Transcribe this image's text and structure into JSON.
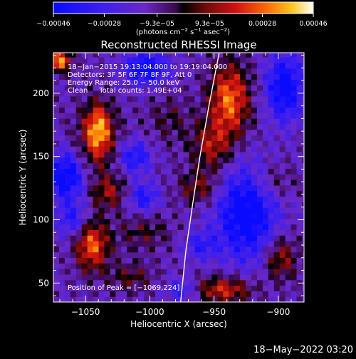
{
  "chart_data": {
    "type": "heatmap",
    "title": "Reconstructed RHESSI Image",
    "xlabel": "Heliocentric X (arcsec)",
    "ylabel": "Heliocentric Y (arcsec)",
    "xlim": [
      -1075,
      -880
    ],
    "ylim": [
      35,
      232
    ],
    "x_ticks": [
      -1050,
      -1000,
      -950,
      -900
    ],
    "x_tick_labels": [
      "−1050",
      "−1000",
      "−950",
      "−900"
    ],
    "y_ticks": [
      50,
      100,
      150,
      200
    ],
    "y_tick_labels": [
      "50",
      "100",
      "150",
      "200"
    ],
    "colorbar": {
      "range": [
        -0.00046,
        0.00046
      ],
      "ticks": [
        -0.00046,
        -0.00028,
        -9.3e-05,
        9.3e-05,
        0.00028,
        0.00046
      ],
      "tick_labels": [
        "−0.00046",
        "−0.00028",
        "−9.3e−05",
        "9.3e−05",
        "0.00028",
        "0.00046"
      ],
      "unit_prefix": "(photons cm",
      "unit_exp1": "−2",
      "unit_mid": " s",
      "unit_exp2": "−1",
      "unit_mid2": " asec",
      "unit_exp3": "−2",
      "unit_suffix": ")"
    },
    "annotations": [
      "18−Jan−2015 19:13:04.000 to 19:19:04.000",
      "Detectors: 3F 5F 6F 7F 8F 9F, Att 0",
      "Energy Range: 25.0 − 50.0 keV",
      "Clean     Total counts: 1.49E+04"
    ],
    "peak_label": "Position of Peak = [−1069,224]",
    "limb": [
      [
        -976,
        35
      ],
      [
        -972,
        75
      ],
      [
        -967,
        110
      ],
      [
        -961,
        150
      ],
      [
        -954,
        190
      ],
      [
        -946,
        232
      ]
    ],
    "sources": [
      {
        "x": -1070,
        "y": 226,
        "sx": 6,
        "sy": 6,
        "amp": 1.0
      },
      {
        "x": -1040,
        "y": 172,
        "sx": 7,
        "sy": 14,
        "amp": 0.85
      },
      {
        "x": -1032,
        "y": 122,
        "sx": 9,
        "sy": 9,
        "amp": 0.5
      },
      {
        "x": -1045,
        "y": 80,
        "sx": 9,
        "sy": 14,
        "amp": 0.85
      },
      {
        "x": -1042,
        "y": 160,
        "sx": 14,
        "sy": 20,
        "amp": 0.35
      },
      {
        "x": -938,
        "y": 195,
        "sx": 11,
        "sy": 20,
        "amp": 0.9
      },
      {
        "x": -952,
        "y": 158,
        "sx": 11,
        "sy": 14,
        "amp": 0.55
      },
      {
        "x": -962,
        "y": 125,
        "sx": 11,
        "sy": 9,
        "amp": 0.45
      },
      {
        "x": -942,
        "y": 45,
        "sx": 15,
        "sy": 7,
        "amp": 0.7
      },
      {
        "x": -898,
        "y": 70,
        "sx": 9,
        "sy": 12,
        "amp": 0.55
      },
      {
        "x": -1005,
        "y": 90,
        "sx": 15,
        "sy": 10,
        "amp": 0.3
      },
      {
        "x": -985,
        "y": 180,
        "sx": 12,
        "sy": 14,
        "amp": 0.25
      },
      {
        "x": -905,
        "y": 130,
        "sx": 12,
        "sy": 10,
        "amp": 0.3
      },
      {
        "x": -1015,
        "y": 55,
        "sx": 12,
        "sy": 8,
        "amp": 0.35
      }
    ],
    "negative_regions": [
      {
        "x": -925,
        "y": 105,
        "sx": 16,
        "sy": 25,
        "amp": 0.9
      },
      {
        "x": -895,
        "y": 205,
        "sx": 10,
        "sy": 18,
        "amp": 0.85
      },
      {
        "x": -1003,
        "y": 220,
        "sx": 12,
        "sy": 9,
        "amp": 0.8
      },
      {
        "x": -1065,
        "y": 135,
        "sx": 10,
        "sy": 14,
        "amp": 0.85
      },
      {
        "x": -1012,
        "y": 150,
        "sx": 9,
        "sy": 9,
        "amp": 0.6
      },
      {
        "x": -1005,
        "y": 118,
        "sx": 8,
        "sy": 8,
        "amp": 0.55
      },
      {
        "x": -1060,
        "y": 100,
        "sx": 8,
        "sy": 9,
        "amp": 0.5
      },
      {
        "x": -960,
        "y": 80,
        "sx": 9,
        "sy": 8,
        "amp": 0.45
      },
      {
        "x": -975,
        "y": 45,
        "sx": 8,
        "sy": 6,
        "amp": 0.45
      }
    ],
    "grid": false
  },
  "footer": {
    "timestamp": "18−May−2022 03:20"
  }
}
